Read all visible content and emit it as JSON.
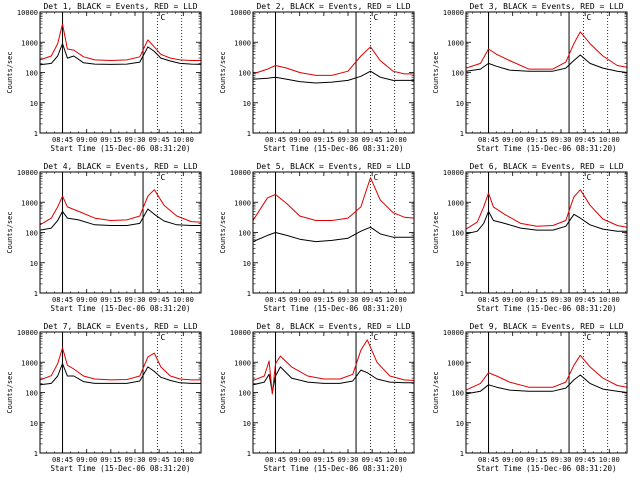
{
  "panels_meta": {
    "x_label": "Start Time (15-Dec-06 08:31:20)",
    "y_label": "Counts/sec",
    "y_ticks": [
      "1",
      "10",
      "100",
      "1000",
      "10000"
    ],
    "x_ticks": [
      "08:45",
      "09:00",
      "09:15",
      "09:30",
      "09:45",
      "10:00"
    ],
    "flag_letter": "C",
    "colors": {
      "events": "#000000",
      "lld": "#e00000",
      "axes": "#000000"
    }
  },
  "chart_data": [
    {
      "type": "line",
      "title": "Det 1, BLACK = Events, RED = LLD",
      "flag": "C",
      "ylog": true,
      "ylim": [
        1,
        10000
      ],
      "xlim": [
        "08:31",
        "10:11"
      ],
      "markers": {
        "solid": [
          "08:45",
          "09:35"
        ],
        "dotted": [
          "09:44",
          "09:59"
        ]
      },
      "series": [
        {
          "name": "Events",
          "color": "#000000",
          "x": [
            "08:31",
            "08:38",
            "08:42",
            "08:45",
            "08:48",
            "08:52",
            "08:58",
            "09:05",
            "09:15",
            "09:25",
            "09:33",
            "09:38",
            "09:42",
            "09:46",
            "09:52",
            "09:58",
            "10:05",
            "10:11"
          ],
          "y": [
            180,
            200,
            350,
            900,
            300,
            350,
            210,
            190,
            185,
            190,
            220,
            700,
            500,
            300,
            240,
            200,
            190,
            185
          ]
        },
        {
          "name": "LLD",
          "color": "#e00000",
          "x": [
            "08:31",
            "08:38",
            "08:42",
            "08:45",
            "08:48",
            "08:52",
            "08:58",
            "09:05",
            "09:15",
            "09:25",
            "09:33",
            "09:38",
            "09:42",
            "09:46",
            "09:52",
            "09:58",
            "10:05",
            "10:11"
          ],
          "y": [
            260,
            350,
            900,
            4000,
            600,
            550,
            330,
            260,
            250,
            260,
            330,
            1200,
            700,
            400,
            300,
            260,
            250,
            250
          ]
        }
      ]
    },
    {
      "type": "line",
      "title": "Det 2, BLACK = Events, RED = LLD",
      "flag": "C",
      "ylog": true,
      "ylim": [
        1,
        10000
      ],
      "xlim": [
        "08:31",
        "10:11"
      ],
      "markers": {
        "solid": [
          "08:45",
          "09:35"
        ],
        "dotted": [
          "09:44",
          "09:59"
        ]
      },
      "series": [
        {
          "name": "Events",
          "color": "#000000",
          "x": [
            "08:31",
            "08:40",
            "08:45",
            "08:52",
            "09:00",
            "09:10",
            "09:20",
            "09:30",
            "09:38",
            "09:44",
            "09:50",
            "09:58",
            "10:05",
            "10:11"
          ],
          "y": [
            60,
            65,
            70,
            60,
            50,
            45,
            48,
            55,
            75,
            110,
            70,
            55,
            55,
            55
          ]
        },
        {
          "name": "LLD",
          "color": "#e00000",
          "x": [
            "08:31",
            "08:40",
            "08:45",
            "08:52",
            "09:00",
            "09:10",
            "09:20",
            "09:30",
            "09:38",
            "09:44",
            "09:50",
            "09:58",
            "10:05",
            "10:11"
          ],
          "y": [
            90,
            130,
            170,
            140,
            100,
            80,
            80,
            110,
            350,
            700,
            250,
            110,
            90,
            90
          ]
        }
      ]
    },
    {
      "type": "line",
      "title": "Det 3, BLACK = Events, RED = LLD",
      "flag": "C",
      "ylog": true,
      "ylim": [
        1,
        10000
      ],
      "xlim": [
        "08:31",
        "10:11"
      ],
      "markers": {
        "solid": [
          "08:45",
          "09:35"
        ],
        "dotted": [
          "09:44",
          "09:59"
        ]
      },
      "series": [
        {
          "name": "Events",
          "color": "#000000",
          "x": [
            "08:31",
            "08:40",
            "08:45",
            "08:50",
            "08:58",
            "09:10",
            "09:25",
            "09:33",
            "09:38",
            "09:42",
            "09:48",
            "09:56",
            "10:05",
            "10:11"
          ],
          "y": [
            110,
            130,
            200,
            160,
            120,
            110,
            110,
            140,
            250,
            380,
            200,
            140,
            110,
            100
          ]
        },
        {
          "name": "LLD",
          "color": "#e00000",
          "x": [
            "08:31",
            "08:40",
            "08:45",
            "08:50",
            "08:58",
            "09:10",
            "09:25",
            "09:33",
            "09:38",
            "09:42",
            "09:48",
            "09:56",
            "10:05",
            "10:11"
          ],
          "y": [
            140,
            200,
            600,
            400,
            250,
            130,
            130,
            220,
            900,
            2200,
            900,
            350,
            170,
            150
          ]
        }
      ]
    },
    {
      "type": "line",
      "title": "Det 4, BLACK = Events, RED = LLD",
      "flag": "C",
      "ylog": true,
      "ylim": [
        1,
        10000
      ],
      "xlim": [
        "08:31",
        "10:11"
      ],
      "markers": {
        "solid": [
          "08:45",
          "09:35"
        ],
        "dotted": [
          "09:44",
          "09:59"
        ]
      },
      "series": [
        {
          "name": "Events",
          "color": "#000000",
          "x": [
            "08:31",
            "08:38",
            "08:42",
            "08:45",
            "08:48",
            "08:55",
            "09:05",
            "09:15",
            "09:25",
            "09:33",
            "09:38",
            "09:42",
            "09:48",
            "09:56",
            "10:05",
            "10:11"
          ],
          "y": [
            120,
            140,
            250,
            500,
            300,
            260,
            180,
            170,
            170,
            200,
            600,
            400,
            240,
            180,
            170,
            170
          ]
        },
        {
          "name": "LLD",
          "color": "#e00000",
          "x": [
            "08:31",
            "08:38",
            "08:42",
            "08:45",
            "08:48",
            "08:55",
            "09:05",
            "09:15",
            "09:25",
            "09:33",
            "09:38",
            "09:42",
            "09:48",
            "09:56",
            "10:05",
            "10:11"
          ],
          "y": [
            180,
            300,
            700,
            1600,
            700,
            500,
            300,
            250,
            260,
            350,
            1600,
            2600,
            800,
            350,
            230,
            220
          ]
        }
      ]
    },
    {
      "type": "line",
      "title": "Det 5, BLACK = Events, RED = LLD",
      "flag": "C",
      "ylog": true,
      "ylim": [
        1,
        10000
      ],
      "xlim": [
        "08:31",
        "10:11"
      ],
      "markers": {
        "solid": [
          "08:45",
          "09:35"
        ],
        "dotted": [
          "09:44",
          "09:59"
        ]
      },
      "series": [
        {
          "name": "Events",
          "color": "#000000",
          "x": [
            "08:31",
            "08:40",
            "08:45",
            "08:52",
            "09:00",
            "09:10",
            "09:20",
            "09:30",
            "09:38",
            "09:44",
            "09:50",
            "09:58",
            "10:05",
            "10:11"
          ],
          "y": [
            50,
            80,
            100,
            80,
            60,
            50,
            55,
            65,
            110,
            150,
            90,
            70,
            70,
            70
          ]
        },
        {
          "name": "LLD",
          "color": "#e00000",
          "x": [
            "08:31",
            "08:40",
            "08:45",
            "08:52",
            "09:00",
            "09:10",
            "09:20",
            "09:30",
            "09:38",
            "09:44",
            "09:50",
            "09:58",
            "10:05",
            "10:11"
          ],
          "y": [
            250,
            1400,
            1800,
            900,
            350,
            250,
            250,
            300,
            700,
            6500,
            1200,
            450,
            320,
            300
          ]
        }
      ]
    },
    {
      "type": "line",
      "title": "Det 6, BLACK = Events, RED = LLD",
      "flag": "C",
      "ylog": true,
      "ylim": [
        1,
        10000
      ],
      "xlim": [
        "08:31",
        "10:11"
      ],
      "markers": {
        "solid": [
          "08:45",
          "09:35"
        ],
        "dotted": [
          "09:44",
          "09:59"
        ]
      },
      "series": [
        {
          "name": "Events",
          "color": "#000000",
          "x": [
            "08:31",
            "08:38",
            "08:42",
            "08:45",
            "08:48",
            "08:55",
            "09:05",
            "09:15",
            "09:25",
            "09:33",
            "09:38",
            "09:42",
            "09:48",
            "09:56",
            "10:05",
            "10:11"
          ],
          "y": [
            90,
            110,
            200,
            500,
            250,
            200,
            140,
            120,
            120,
            160,
            400,
            300,
            180,
            130,
            110,
            110
          ]
        },
        {
          "name": "LLD",
          "color": "#e00000",
          "x": [
            "08:31",
            "08:38",
            "08:42",
            "08:45",
            "08:48",
            "08:55",
            "09:05",
            "09:15",
            "09:25",
            "09:33",
            "09:38",
            "09:42",
            "09:48",
            "09:56",
            "10:05",
            "10:11"
          ],
          "y": [
            130,
            220,
            700,
            2000,
            700,
            400,
            200,
            160,
            170,
            250,
            1500,
            2600,
            800,
            280,
            170,
            150
          ]
        }
      ]
    },
    {
      "type": "line",
      "title": "Det 7, BLACK = Events, RED = LLD",
      "flag": "C",
      "ylog": true,
      "ylim": [
        1,
        10000
      ],
      "xlim": [
        "08:31",
        "10:11"
      ],
      "markers": {
        "solid": [
          "08:45",
          "09:35"
        ],
        "dotted": [
          "09:44",
          "09:59"
        ]
      },
      "series": [
        {
          "name": "Events",
          "color": "#000000",
          "x": [
            "08:31",
            "08:38",
            "08:42",
            "08:45",
            "08:48",
            "08:52",
            "08:58",
            "09:05",
            "09:15",
            "09:25",
            "09:33",
            "09:38",
            "09:42",
            "09:46",
            "09:52",
            "09:58",
            "10:05",
            "10:11"
          ],
          "y": [
            180,
            200,
            350,
            900,
            350,
            350,
            230,
            200,
            200,
            200,
            240,
            700,
            500,
            320,
            250,
            210,
            200,
            200
          ]
        },
        {
          "name": "LLD",
          "color": "#e00000",
          "x": [
            "08:31",
            "08:38",
            "08:42",
            "08:45",
            "08:48",
            "08:52",
            "08:58",
            "09:05",
            "09:15",
            "09:25",
            "09:33",
            "09:38",
            "09:42",
            "09:46",
            "09:52",
            "09:58",
            "10:05",
            "10:11"
          ],
          "y": [
            260,
            360,
            900,
            3000,
            800,
            600,
            350,
            280,
            260,
            270,
            350,
            1500,
            2000,
            700,
            350,
            280,
            260,
            260
          ]
        }
      ]
    },
    {
      "type": "line",
      "title": "Det 8, BLACK = Events, RED = LLD",
      "flag": "C",
      "ylog": true,
      "ylim": [
        1,
        10000
      ],
      "xlim": [
        "08:31",
        "10:11"
      ],
      "markers": {
        "solid": [
          "08:45",
          "09:35"
        ],
        "dotted": [
          "09:44",
          "09:59"
        ]
      },
      "series": [
        {
          "name": "Events",
          "color": "#000000",
          "x": [
            "08:31",
            "08:38",
            "08:41",
            "08:43",
            "08:45",
            "08:48",
            "08:55",
            "09:05",
            "09:15",
            "09:25",
            "09:33",
            "09:38",
            "09:42",
            "09:48",
            "09:56",
            "10:05",
            "10:11"
          ],
          "y": [
            180,
            220,
            400,
            100,
            350,
            700,
            300,
            220,
            200,
            200,
            240,
            550,
            450,
            280,
            220,
            210,
            210
          ]
        },
        {
          "name": "LLD",
          "color": "#e00000",
          "x": [
            "08:31",
            "08:38",
            "08:41",
            "08:43",
            "08:45",
            "08:48",
            "08:55",
            "09:05",
            "09:15",
            "09:25",
            "09:33",
            "09:38",
            "09:42",
            "09:48",
            "09:56",
            "10:05",
            "10:11"
          ],
          "y": [
            250,
            350,
            1100,
            90,
            900,
            1600,
            700,
            350,
            280,
            280,
            400,
            2500,
            5500,
            1000,
            350,
            260,
            250
          ]
        }
      ]
    },
    {
      "type": "line",
      "title": "Det 9, BLACK = Events, RED = LLD",
      "flag": "C",
      "ylog": true,
      "ylim": [
        1,
        10000
      ],
      "xlim": [
        "08:31",
        "10:11"
      ],
      "markers": {
        "solid": [
          "08:45",
          "09:35"
        ],
        "dotted": [
          "09:44",
          "09:59"
        ]
      },
      "series": [
        {
          "name": "Events",
          "color": "#000000",
          "x": [
            "08:31",
            "08:40",
            "08:45",
            "08:50",
            "08:58",
            "09:10",
            "09:25",
            "09:33",
            "09:38",
            "09:42",
            "09:48",
            "09:56",
            "10:05",
            "10:11"
          ],
          "y": [
            90,
            110,
            180,
            150,
            120,
            110,
            110,
            140,
            260,
            380,
            200,
            130,
            110,
            100
          ]
        },
        {
          "name": "LLD",
          "color": "#e00000",
          "x": [
            "08:31",
            "08:40",
            "08:45",
            "08:50",
            "08:58",
            "09:10",
            "09:25",
            "09:33",
            "09:38",
            "09:42",
            "09:48",
            "09:56",
            "10:05",
            "10:11"
          ],
          "y": [
            120,
            200,
            450,
            350,
            220,
            150,
            150,
            220,
            800,
            1700,
            700,
            300,
            170,
            150
          ]
        }
      ]
    }
  ]
}
